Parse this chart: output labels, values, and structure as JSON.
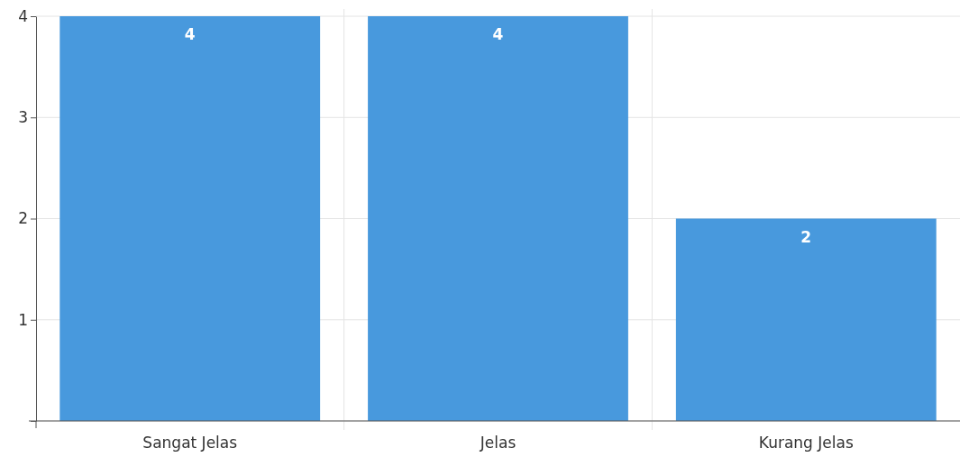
{
  "chart_data": {
    "type": "bar",
    "categories": [
      "Sangat Jelas",
      "Jelas",
      "Kurang Jelas"
    ],
    "values": [
      4,
      4,
      2
    ],
    "color": "#4899dd",
    "ylim": [
      0,
      4
    ],
    "yticks": [
      {
        "value": 0,
        "label": null
      },
      1,
      2,
      3,
      4
    ],
    "grid": true,
    "data_labels": true
  }
}
